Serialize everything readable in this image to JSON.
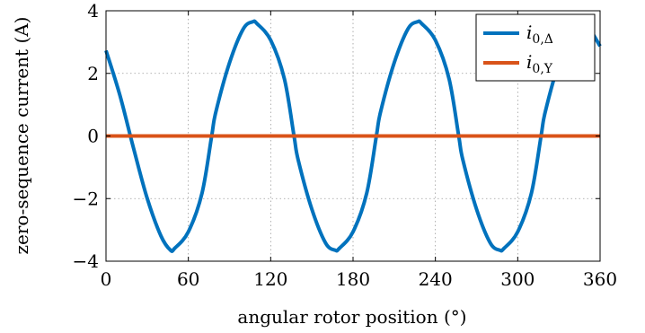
{
  "chart_data": {
    "type": "line",
    "xlabel": "angular rotor position (°)",
    "ylabel": "zero-sequence current (A)",
    "xlim": [
      0,
      360
    ],
    "ylim": [
      -4,
      4
    ],
    "xticks": [
      0,
      60,
      120,
      180,
      240,
      300,
      360
    ],
    "yticks": [
      -4,
      -2,
      0,
      2,
      4
    ],
    "ytick_labels": [
      "−4",
      "−2",
      "0",
      "2",
      "4"
    ],
    "grid": true,
    "legend_position": "top-right",
    "series": [
      {
        "name": "i0,Δ",
        "legend_main": "i",
        "legend_sub_num": "0,",
        "legend_sub_sym": "Δ",
        "color": "#0072bd",
        "x": [
          0,
          10,
          20,
          30,
          40,
          47,
          50,
          60,
          70,
          77,
          80,
          90,
          100,
          107,
          110,
          120,
          130,
          137,
          140,
          150,
          160,
          167,
          170,
          180,
          190,
          197,
          200,
          210,
          220,
          227,
          230,
          240,
          250,
          257,
          260,
          270,
          280,
          287,
          290,
          300,
          310,
          317,
          320,
          330,
          340,
          347,
          350,
          360
        ],
        "y": [
          2.73,
          1.32,
          -0.38,
          -1.99,
          -3.19,
          -3.65,
          -3.59,
          -3.06,
          -1.82,
          0.0,
          0.76,
          2.34,
          3.42,
          3.65,
          3.59,
          3.06,
          1.82,
          0.0,
          -0.76,
          -2.34,
          -3.42,
          -3.65,
          -3.59,
          -3.06,
          -1.82,
          0.0,
          0.76,
          2.34,
          3.42,
          3.65,
          3.59,
          3.06,
          1.82,
          0.0,
          -0.76,
          -2.34,
          -3.42,
          -3.65,
          -3.59,
          -3.06,
          -1.82,
          0.0,
          0.76,
          2.34,
          3.42,
          3.65,
          3.6,
          2.87
        ]
      },
      {
        "name": "i0,Y",
        "legend_main": "i",
        "legend_sub_num": "0,",
        "legend_sub_sym": "Y",
        "color": "#d95319",
        "x": [
          0,
          360
        ],
        "y": [
          0,
          0
        ]
      }
    ]
  }
}
